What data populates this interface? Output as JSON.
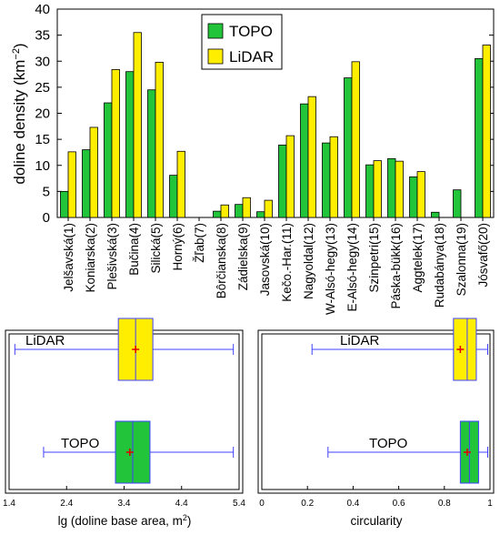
{
  "chart_data": [
    {
      "type": "bar",
      "title": "",
      "xlabel": "",
      "ylabel": "doline density (km",
      "ylabel_sup": "−2",
      "ylabel_end": ")",
      "ylim": [
        0,
        40
      ],
      "yticks": [
        0,
        5,
        10,
        15,
        20,
        25,
        30,
        35,
        40
      ],
      "grid": false,
      "legend_position": "top-center",
      "categories": [
        "Jelšavská(1)",
        "Koniarska(2)",
        "Plešivská(3)",
        "Bučina(4)",
        "Silická(5)",
        "Horný(6)",
        "Žľab(7)",
        "Bôrčianska(8)",
        "Zádielska(9)",
        "Jasovská(10)",
        "Kečo.-Har.(11)",
        "Nagyoldal(12)",
        "W-Alsó-hegy(13)",
        "E-Alsó-hegy(14)",
        "Szinpetri(15)",
        "Páska-bükk(16)",
        "Aggtelek(17)",
        "Rudabánya(18)",
        "Szalonna(19)",
        "Jósvafő(20)"
      ],
      "series": [
        {
          "name": "TOPO",
          "color": "#22c43a",
          "values": [
            5.0,
            13.0,
            22.0,
            28.0,
            24.5,
            8.1,
            0,
            1.2,
            2.5,
            1.1,
            13.9,
            21.8,
            14.3,
            26.8,
            10.1,
            11.3,
            7.8,
            1.0,
            5.3,
            30.5
          ]
        },
        {
          "name": "LiDAR",
          "color": "#ffee00",
          "values": [
            12.6,
            17.3,
            28.4,
            35.5,
            29.8,
            12.7,
            0,
            2.4,
            3.8,
            3.3,
            15.7,
            23.2,
            15.5,
            29.9,
            10.9,
            10.8,
            8.8,
            0,
            0,
            33.1
          ]
        }
      ]
    },
    {
      "type": "box",
      "title": "",
      "xlabel": "lg (doline base area, m",
      "xlabel_sup": "2",
      "xlabel_end": ")",
      "xlim": [
        1.4,
        5.4
      ],
      "xticks": [
        "1.4",
        "2.4",
        "3.4",
        "4.4",
        "5.4"
      ],
      "series": [
        {
          "name": "LiDAR",
          "color": "#ffee00",
          "min": 1.5,
          "q1": 3.3,
          "median": 3.6,
          "q3": 3.9,
          "max": 5.3,
          "mean": 3.6
        },
        {
          "name": "TOPO",
          "color": "#22c43a",
          "min": 2.0,
          "q1": 3.25,
          "median": 3.55,
          "q3": 3.85,
          "max": 5.3,
          "mean": 3.5
        }
      ]
    },
    {
      "type": "box",
      "title": "",
      "xlabel": "circularity",
      "xlim": [
        0,
        1
      ],
      "xticks": [
        "0",
        "0.2",
        "0.4",
        "0.6",
        "0.8",
        "1"
      ],
      "series": [
        {
          "name": "LiDAR",
          "color": "#ffee00",
          "min": 0.22,
          "q1": 0.84,
          "median": 0.9,
          "q3": 0.94,
          "max": 0.99,
          "mean": 0.87
        },
        {
          "name": "TOPO",
          "color": "#22c43a",
          "min": 0.29,
          "q1": 0.87,
          "median": 0.91,
          "q3": 0.95,
          "max": 0.99,
          "mean": 0.9
        }
      ]
    }
  ]
}
